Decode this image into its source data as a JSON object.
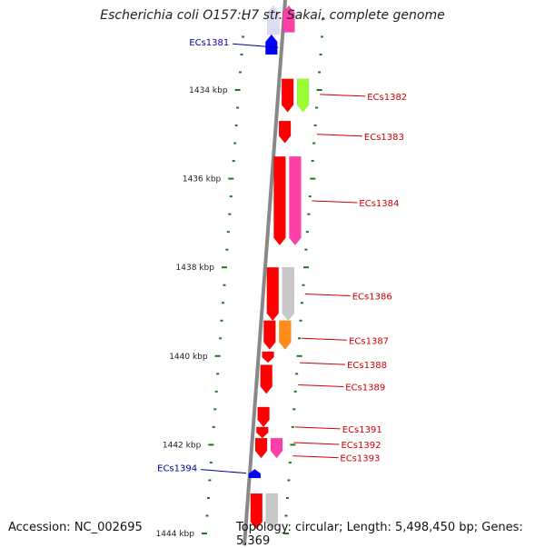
{
  "title": "Escherichia coli O157:H7 str. Sakai, complete genome",
  "footer": {
    "accession": "Accession: NC_002695",
    "topology": "Topology: circular; Length: 5,498,450 bp; Genes: 5,369"
  },
  "colors": {
    "backbone": "#888888",
    "tick": "#1a7a1a",
    "forward_label": "#00009a",
    "reverse_label": "#cc0000"
  },
  "scale_labels": [
    {
      "kbp": 1434,
      "text": "1434 kbp"
    },
    {
      "kbp": 1436,
      "text": "1436 kbp"
    },
    {
      "kbp": 1438,
      "text": "1438 kbp"
    },
    {
      "kbp": 1440,
      "text": "1440 kbp"
    },
    {
      "kbp": 1442,
      "text": "1442 kbp"
    },
    {
      "kbp": 1444,
      "text": "1444 kbp"
    }
  ],
  "gene_labels": [
    {
      "text": "ECs1381",
      "strand": "forward",
      "kbp": 1433.0
    },
    {
      "text": "ECs1382",
      "strand": "reverse",
      "kbp": 1434.1
    },
    {
      "text": "ECs1383",
      "strand": "reverse",
      "kbp": 1435.0
    },
    {
      "text": "ECs1384",
      "strand": "reverse",
      "kbp": 1436.5
    },
    {
      "text": "ECs1386",
      "strand": "reverse",
      "kbp": 1438.6
    },
    {
      "text": "ECs1387",
      "strand": "reverse",
      "kbp": 1439.6
    },
    {
      "text": "ECs1388",
      "strand": "reverse",
      "kbp": 1440.15
    },
    {
      "text": "ECs1389",
      "strand": "reverse",
      "kbp": 1440.65
    },
    {
      "text": "ECs1391",
      "strand": "reverse",
      "kbp": 1441.6
    },
    {
      "text": "ECs1392",
      "strand": "reverse",
      "kbp": 1441.95
    },
    {
      "text": "ECs1393",
      "strand": "reverse",
      "kbp": 1442.25
    },
    {
      "text": "ECs1394",
      "strand": "forward",
      "kbp": 1442.6
    }
  ],
  "features": [
    {
      "strand": "forward",
      "ring": 1,
      "start": 1432.1,
      "end": 1432.7,
      "color": "#ff3fa8"
    },
    {
      "strand": "forward",
      "ring": 2,
      "start": 1432.1,
      "end": 1432.75,
      "color": "#dcdcf5"
    },
    {
      "strand": "forward",
      "ring": 2,
      "start": 1432.75,
      "end": 1433.2,
      "color": "#0000ff"
    },
    {
      "strand": "reverse",
      "ring": 1,
      "start": 1433.75,
      "end": 1434.5,
      "color": "#ff0000"
    },
    {
      "strand": "reverse",
      "ring": 2,
      "start": 1433.75,
      "end": 1434.5,
      "color": "#99ff33"
    },
    {
      "strand": "reverse",
      "ring": 1,
      "start": 1434.7,
      "end": 1435.2,
      "color": "#ff0000"
    },
    {
      "strand": "reverse",
      "ring": 1,
      "start": 1435.5,
      "end": 1437.5,
      "color": "#ff0000"
    },
    {
      "strand": "reverse",
      "ring": 2,
      "start": 1435.5,
      "end": 1437.5,
      "color": "#ff3fa8"
    },
    {
      "strand": "reverse",
      "ring": 1,
      "start": 1438.0,
      "end": 1439.2,
      "color": "#ff0000"
    },
    {
      "strand": "reverse",
      "ring": 2,
      "start": 1438.0,
      "end": 1439.2,
      "color": "#c8c8c8"
    },
    {
      "strand": "reverse",
      "ring": 1,
      "start": 1439.2,
      "end": 1439.85,
      "color": "#ff0000"
    },
    {
      "strand": "reverse",
      "ring": 2,
      "start": 1439.2,
      "end": 1439.85,
      "color": "#ff8c1a"
    },
    {
      "strand": "reverse",
      "ring": 1,
      "start": 1439.9,
      "end": 1440.15,
      "color": "#ff0000"
    },
    {
      "strand": "reverse",
      "ring": 1,
      "start": 1440.2,
      "end": 1440.85,
      "color": "#ff0000"
    },
    {
      "strand": "reverse",
      "ring": 1,
      "start": 1441.15,
      "end": 1441.6,
      "color": "#ff0000"
    },
    {
      "strand": "reverse",
      "ring": 1,
      "start": 1441.6,
      "end": 1441.85,
      "color": "#ff0000"
    },
    {
      "strand": "reverse",
      "ring": 1,
      "start": 1441.85,
      "end": 1442.3,
      "color": "#ff0000"
    },
    {
      "strand": "reverse",
      "ring": 2,
      "start": 1441.85,
      "end": 1442.3,
      "color": "#ff3fa8"
    },
    {
      "strand": "forward",
      "ring": 1,
      "start": 1442.55,
      "end": 1442.75,
      "color": "#0000ff"
    },
    {
      "strand": "reverse",
      "ring": 1,
      "start": 1443.1,
      "end": 1443.9,
      "color": "#ff0000"
    },
    {
      "strand": "reverse",
      "ring": 2,
      "start": 1443.1,
      "end": 1443.9,
      "color": "#c8c8c8"
    }
  ]
}
